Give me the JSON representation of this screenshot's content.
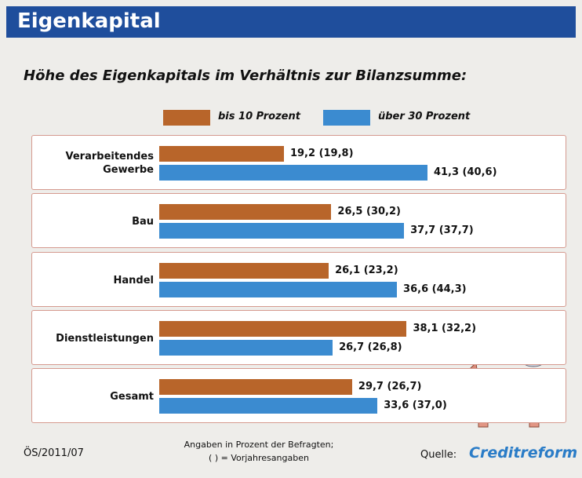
{
  "header": {
    "title": "Eigenkapital"
  },
  "chart_data": {
    "type": "bar",
    "orientation": "horizontal",
    "title": "Höhe des Eigenkapitals im Verhältnis zur Bilanzsumme:",
    "categories": [
      "Verarbeitendes Gewerbe",
      "Bau",
      "Handel",
      "Dienstleistungen",
      "Gesamt"
    ],
    "series": [
      {
        "name": "bis 10 Prozent",
        "color": "#b8652a",
        "values": [
          19.2,
          26.5,
          26.1,
          38.1,
          29.7
        ],
        "value_labels": [
          "19,2 (19,8)",
          "26,5 (30,2)",
          "26,1 (23,2)",
          "38,1 (32,2)",
          "29,7 (26,7)"
        ]
      },
      {
        "name": "über 30 Prozent",
        "color": "#3b8bd0",
        "values": [
          41.3,
          37.7,
          36.6,
          26.7,
          33.6
        ],
        "value_labels": [
          "41,3 (40,6)",
          "37,7 (37,7)",
          "36,6 (44,3)",
          "26,7 (26,8)",
          "33,6 (37,0)"
        ]
      }
    ]
  },
  "footer": {
    "code": "ÖS/2011/07",
    "note": [
      "Angaben in Prozent der Befragten;",
      "( ) = Vorjahresangaben"
    ],
    "source_label": "Quelle:",
    "source": "Creditreform"
  }
}
